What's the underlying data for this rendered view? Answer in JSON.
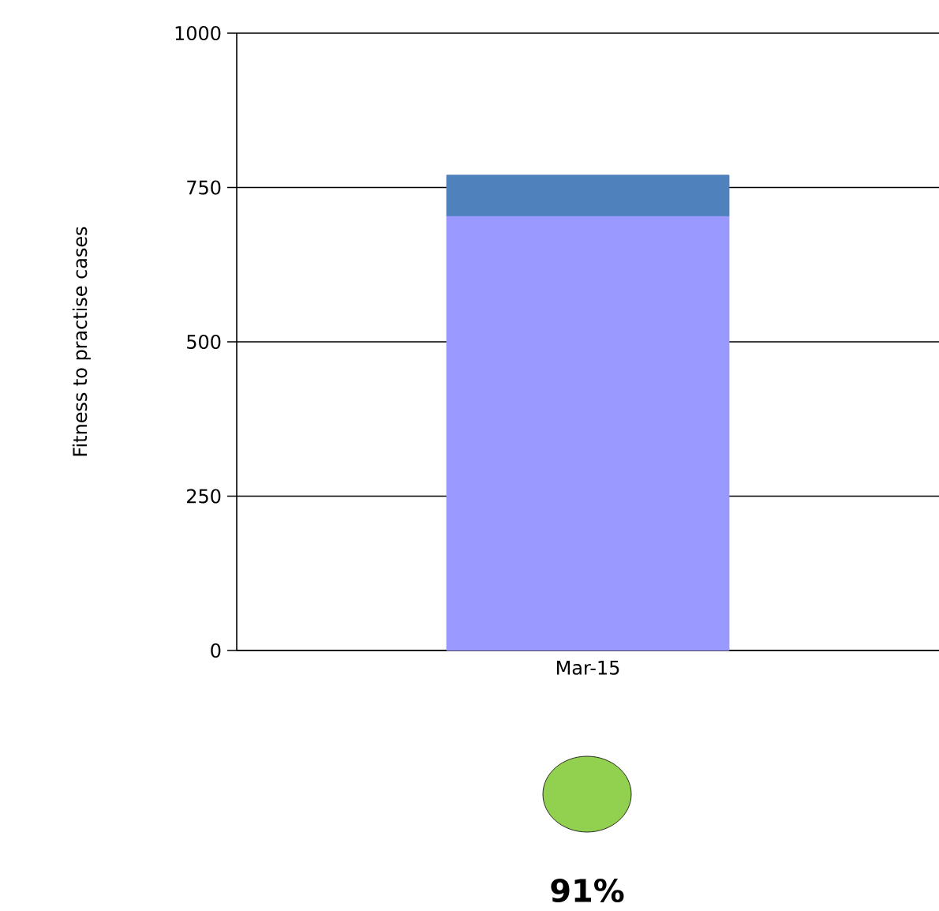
{
  "chart_data": {
    "type": "bar",
    "stacked": true,
    "ylabel": "Fitness to practise cases",
    "categories": [
      "Mar-15"
    ],
    "series": [
      {
        "color": "#9999ff",
        "values": [
          703
        ]
      },
      {
        "color": "#4f81bd",
        "values": [
          67
        ]
      }
    ],
    "ylim": [
      0,
      1000
    ],
    "yticks": [
      0,
      250,
      500,
      750,
      1000
    ],
    "grid": "y",
    "annotations": [
      "91%"
    ]
  }
}
